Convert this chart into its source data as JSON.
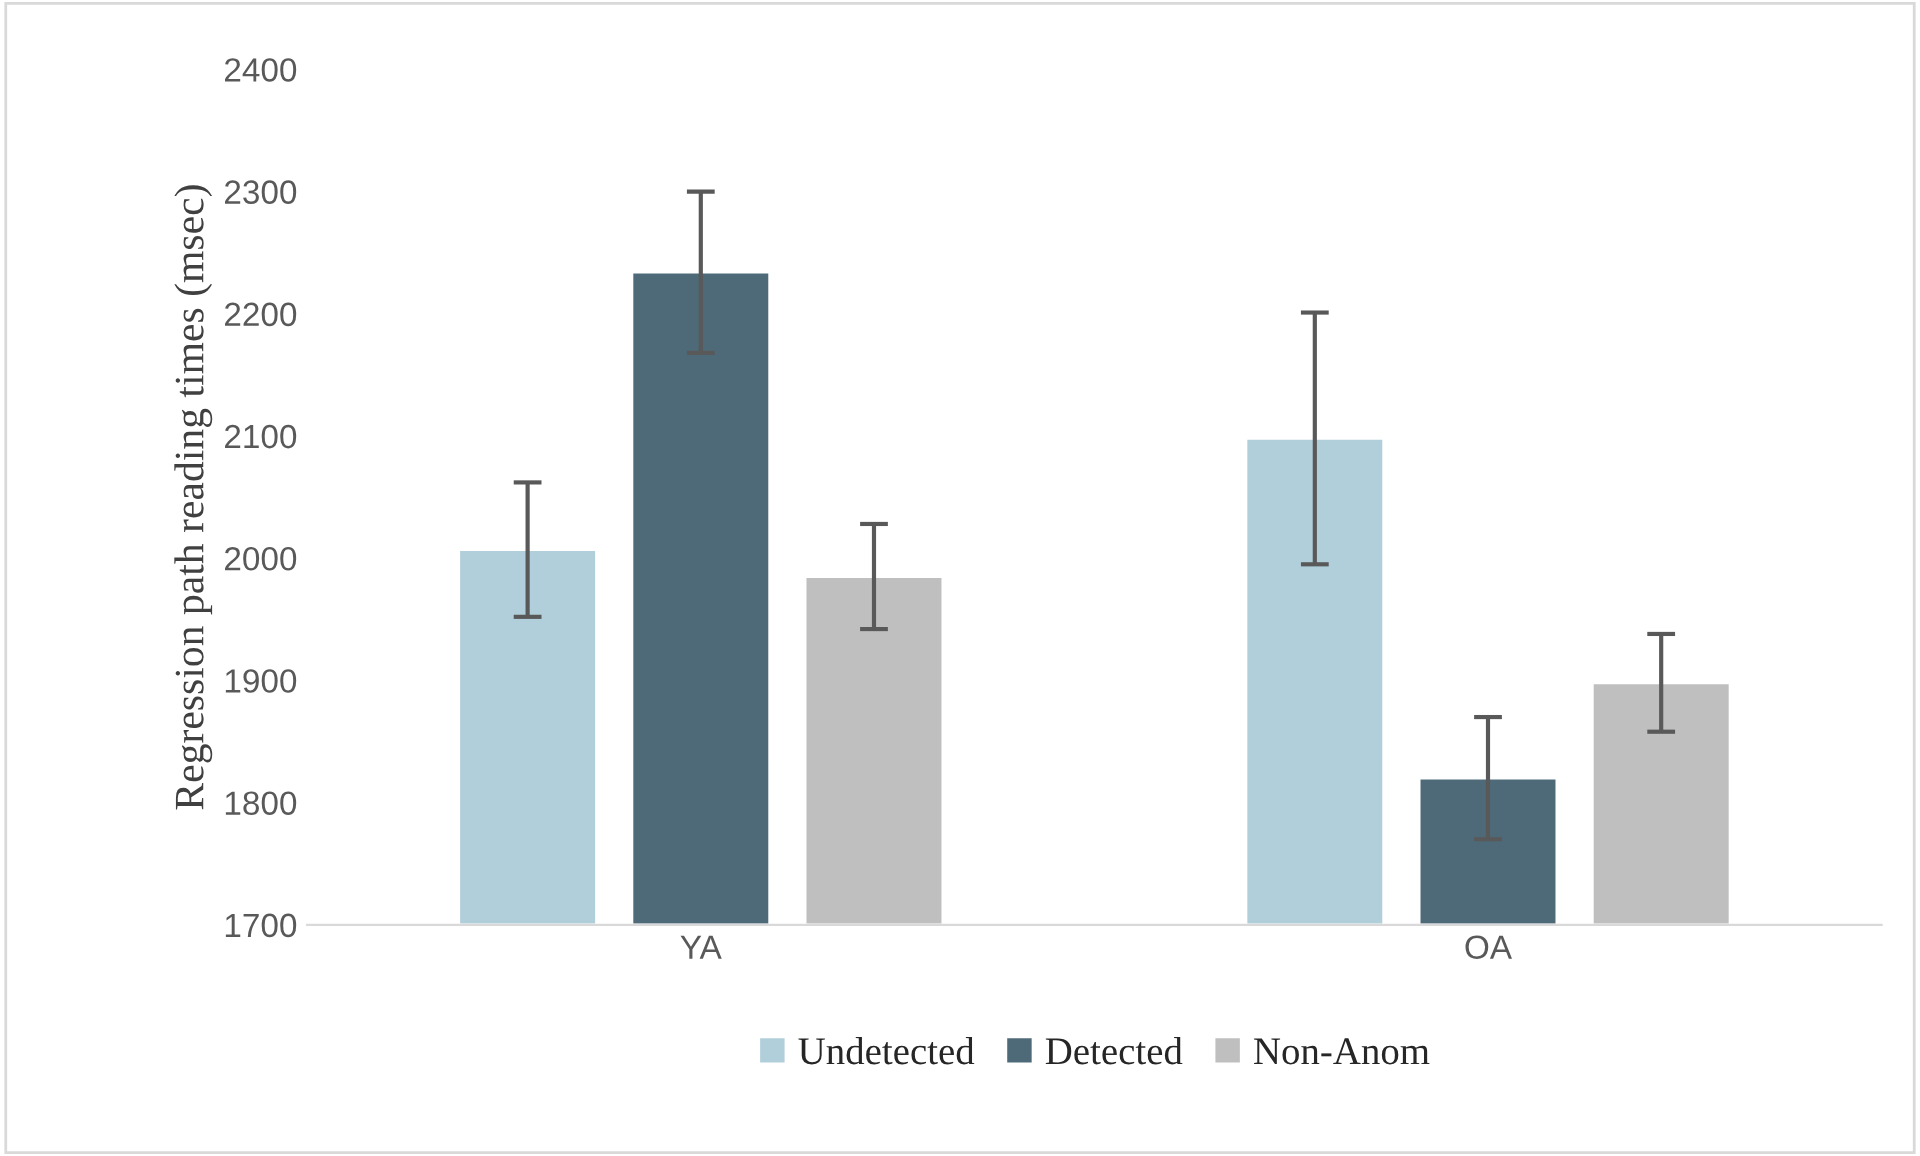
{
  "chart_data": {
    "type": "bar",
    "ylabel": "Regression path reading times (msec)",
    "categories": [
      "YA",
      "OA"
    ],
    "series": [
      {
        "name": "Undetected",
        "color": "#b0cfda",
        "values": [
          2007,
          2098
        ],
        "errors": [
          55,
          103
        ]
      },
      {
        "name": "Detected",
        "color": "#4e6a78",
        "values": [
          2234,
          1820
        ],
        "errors": [
          66,
          50
        ]
      },
      {
        "name": "Non-Anom",
        "color": "#bfbfbf",
        "values": [
          1985,
          1898
        ],
        "errors": [
          43,
          40
        ]
      }
    ],
    "ylim": [
      1700,
      2400
    ],
    "yticks": [
      1700,
      1800,
      1900,
      2000,
      2100,
      2200,
      2300,
      2400
    ],
    "grid": false,
    "legend": "bottom"
  }
}
